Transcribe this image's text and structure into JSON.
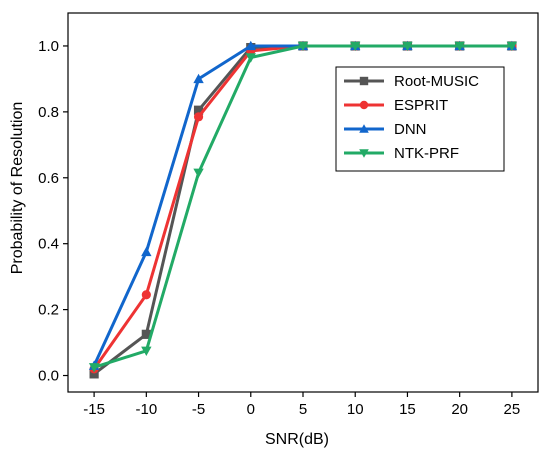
{
  "chart_data": {
    "type": "line",
    "xlabel": "SNR(dB)",
    "ylabel": "Probability of Resolution",
    "x": [
      -15,
      -10,
      -5,
      0,
      5,
      10,
      15,
      20,
      25
    ],
    "xlim": [
      -17.5,
      27.5
    ],
    "ylim": [
      -0.05,
      1.1
    ],
    "xticks": [
      -15,
      -10,
      -5,
      0,
      5,
      10,
      15,
      20,
      25
    ],
    "yticks": [
      0.0,
      0.2,
      0.4,
      0.6,
      0.8,
      1.0
    ],
    "ytick_labels": [
      "0.0",
      "0.2",
      "0.4",
      "0.6",
      "0.8",
      "1.0"
    ],
    "grid": false,
    "legend_position": "top-right",
    "series": [
      {
        "name": "Root-MUSIC",
        "color": "#555555",
        "marker": "square",
        "values": [
          0.005,
          0.125,
          0.805,
          0.995,
          1.0,
          1.0,
          1.0,
          1.0,
          1.0
        ]
      },
      {
        "name": "ESPRIT",
        "color": "#ee3333",
        "marker": "circle",
        "values": [
          0.02,
          0.245,
          0.785,
          0.985,
          1.0,
          1.0,
          1.0,
          1.0,
          1.0
        ]
      },
      {
        "name": "DNN",
        "color": "#1166cc",
        "marker": "triangle-up",
        "values": [
          0.03,
          0.375,
          0.9,
          1.0,
          1.0,
          1.0,
          1.0,
          1.0,
          1.0
        ]
      },
      {
        "name": "NTK-PRF",
        "color": "#22aa66",
        "marker": "triangle-down",
        "values": [
          0.025,
          0.075,
          0.615,
          0.965,
          1.0,
          1.0,
          1.0,
          1.0,
          1.0
        ]
      }
    ]
  }
}
